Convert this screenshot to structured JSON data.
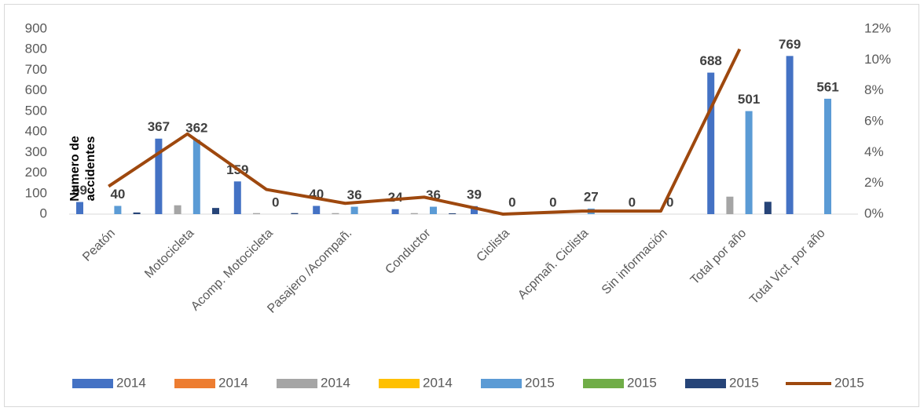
{
  "chart_data": {
    "type": "bar",
    "y_label": "Numero de accidentes",
    "categories": [
      "Peatón",
      "Motocicleta",
      "Acomp. Motocicleta",
      "Pasajero /Acompañ.",
      "Conductor",
      "Ciclista",
      "Acpmañ. Ciclista",
      "Sin información",
      "Total por año",
      "Total Vict. por año"
    ],
    "series": [
      {
        "name": "2014",
        "color": "#4472c4",
        "data_labels": true,
        "values": [
          59,
          367,
          159,
          40,
          24,
          39,
          0,
          0,
          688,
          769
        ]
      },
      {
        "name": "2014",
        "color": "#ed7d31",
        "values": [
          0,
          0,
          0,
          0,
          0,
          0,
          0,
          0,
          0,
          0
        ]
      },
      {
        "name": "2014",
        "color": "#a5a5a5",
        "values": [
          0,
          43,
          5,
          5,
          5,
          0,
          0,
          0,
          85,
          0
        ]
      },
      {
        "name": "2014",
        "color": "#ffc000",
        "values": [
          0,
          0,
          0,
          0,
          0,
          0,
          0,
          0,
          0,
          0
        ]
      },
      {
        "name": "2015",
        "color": "#5b9bd5",
        "data_labels": true,
        "values": [
          40,
          362,
          0,
          36,
          36,
          0,
          27,
          0,
          501,
          561
        ]
      },
      {
        "name": "2015",
        "color": "#70ad47",
        "values": [
          0,
          0,
          0,
          0,
          0,
          0,
          0,
          0,
          0,
          0
        ]
      },
      {
        "name": "2015",
        "color": "#264478",
        "values": [
          8,
          30,
          5,
          0,
          4,
          0,
          0,
          0,
          60,
          0
        ]
      },
      {
        "name": "2015",
        "color": "#9e480e",
        "type": "line",
        "axis": "y2",
        "values": [
          1.8,
          5.2,
          1.6,
          0.7,
          1.1,
          0,
          0.2,
          0.2,
          10.7,
          null
        ]
      }
    ],
    "ylim": [
      0,
      900
    ],
    "yticks": [
      0,
      100,
      200,
      300,
      400,
      500,
      600,
      700,
      800,
      900
    ],
    "y2lim": [
      0,
      12
    ],
    "y2ticks": [
      {
        "value": 0,
        "label": "0%"
      },
      {
        "value": 2,
        "label": "2%"
      },
      {
        "value": 4,
        "label": "4%"
      },
      {
        "value": 6,
        "label": "6%"
      },
      {
        "value": 8,
        "label": "8%"
      },
      {
        "value": 10,
        "label": "10%"
      },
      {
        "value": 12,
        "label": "12%"
      }
    ],
    "grid": false,
    "legend": "bottom"
  }
}
